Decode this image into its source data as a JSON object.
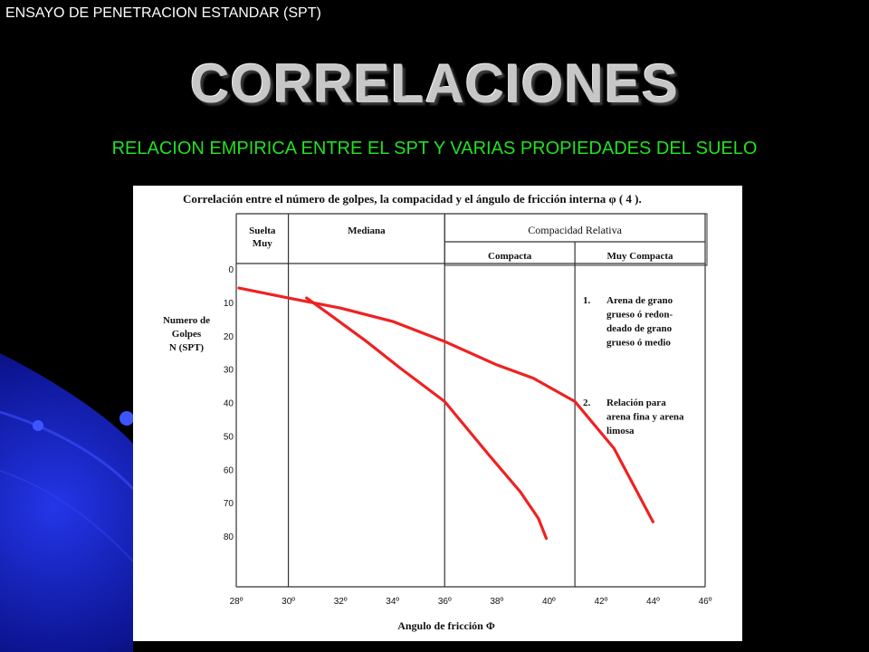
{
  "slide": {
    "header": "ENSAYO DE PENETRACION ESTANDAR (SPT)",
    "title": "CORRELACIONES",
    "subtitle": "RELACION EMPIRICA ENTRE EL SPT Y VARIAS PROPIEDADES DEL SUELO"
  },
  "colors": {
    "background": "#000000",
    "accent_blue": "#1f2fd0",
    "subtitle_green": "#22e022",
    "curve_red": "#ee2222"
  },
  "chart_data": {
    "type": "line",
    "title": "Correlación entre el número de golpes, la compacidad y el ángulo de fricción interna φ ( 4 ).",
    "xlabel": "Angulo de fricción Φ",
    "ylabel_lines": [
      "Numero de",
      "Golpes",
      "N (SPT)"
    ],
    "xlim": [
      28,
      46
    ],
    "ylim": [
      0,
      80
    ],
    "y_inverted": true,
    "x_ticks": [
      "28º",
      "30º",
      "32º",
      "34º",
      "36º",
      "38º",
      "40º",
      "42º",
      "44º",
      "46º"
    ],
    "y_ticks": [
      "0",
      "10",
      "20",
      "30",
      "40",
      "50",
      "60",
      "70",
      "80"
    ],
    "header": {
      "relative_label": "Compacidad Relativa",
      "zones": [
        {
          "label_lines": [
            "Suelta",
            "Muy"
          ],
          "x_start": 28,
          "x_end": 30
        },
        {
          "label_lines": [
            "Mediana"
          ],
          "x_start": 30,
          "x_end": 36
        },
        {
          "label_lines": [
            "Compacta"
          ],
          "x_start": 36,
          "x_end": 41
        },
        {
          "label_lines": [
            "Muy Compacta"
          ],
          "x_start": 41,
          "x_end": 46
        }
      ]
    },
    "series": [
      {
        "id": "curve1",
        "x": [
          28.1,
          30,
          32,
          34,
          36,
          38,
          39.4,
          41,
          42.5,
          44
        ],
        "y": [
          3,
          6,
          9,
          13,
          19,
          26,
          30,
          37,
          51,
          73
        ]
      },
      {
        "id": "curve2",
        "x": [
          30.7,
          31.6,
          33,
          34.3,
          36,
          37.7,
          38.9,
          39.6,
          39.9
        ],
        "y": [
          6,
          11,
          19,
          27,
          37,
          53,
          64,
          72,
          78
        ]
      }
    ],
    "notes": [
      {
        "number": "1.",
        "lines": [
          "Arena de grano",
          "grueso ó redon-",
          "deado de grano",
          "grueso ó medio"
        ]
      },
      {
        "number": "2.",
        "lines": [
          "Relación para",
          "arena fina y arena",
          "limosa"
        ]
      }
    ]
  }
}
